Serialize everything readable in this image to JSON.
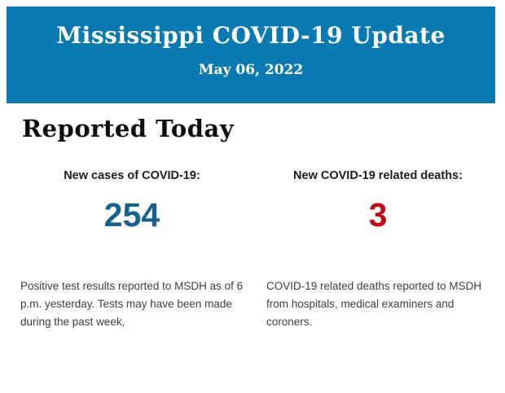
{
  "header": {
    "title": "Mississippi COVID-19 Update",
    "date": "May 06, 2022",
    "background_color": "#0b79b1",
    "text_color": "#ffffff"
  },
  "section": {
    "heading": "Reported Today"
  },
  "stats": [
    {
      "label": "New cases of COVID-19:",
      "value": "254",
      "value_color": "#17618f",
      "description": "Positive test results reported to MSDH as of 6 p.m. yesterday. Tests may have been made during the past week,"
    },
    {
      "label": "New COVID-19 related deaths:",
      "value": "3",
      "value_color": "#bb1016",
      "description": "COVID-19 related deaths reported to MSDH from hospitals, medical examiners and coroners."
    }
  ]
}
